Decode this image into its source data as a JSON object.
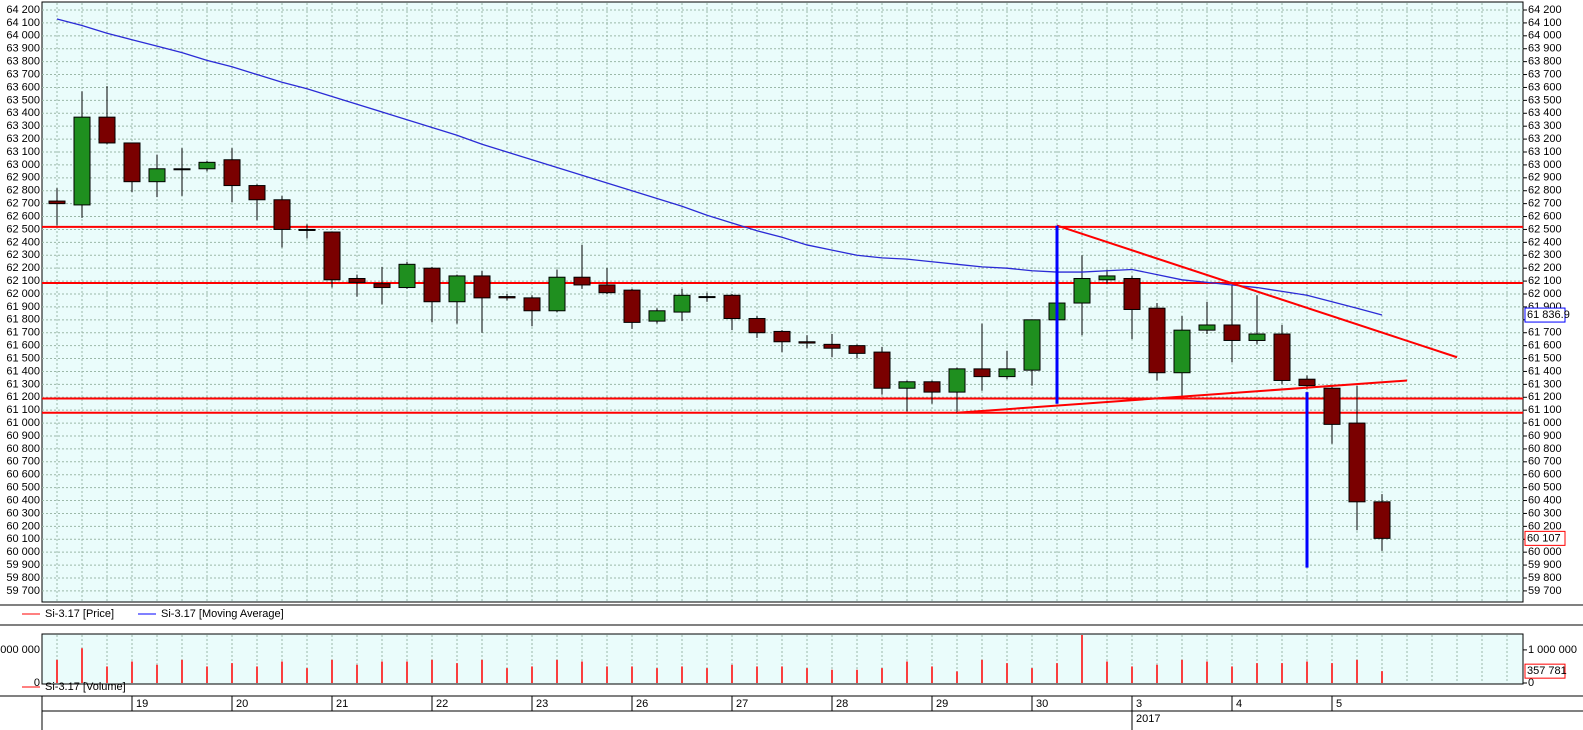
{
  "chart_data": [
    {
      "type": "candlestick",
      "categories": [
        null,
        null,
        null,
        "19",
        null,
        null,
        null,
        "20",
        null,
        null,
        null,
        "21",
        null,
        null,
        null,
        "22",
        null,
        null,
        null,
        "23",
        null,
        null,
        null,
        "26",
        null,
        null,
        null,
        "27",
        null,
        null,
        null,
        "28",
        null,
        null,
        null,
        "29",
        null,
        null,
        null,
        "30",
        null,
        null,
        null,
        "3",
        null,
        null,
        null,
        "4",
        null,
        null,
        null,
        "5",
        null,
        null
      ],
      "year_label": "2017",
      "ylim": [
        59614,
        64262
      ],
      "yticks": [
        {
          "value": 59700,
          "label": "59 700"
        },
        {
          "value": 59800,
          "label": "59 800"
        },
        {
          "value": 59900,
          "label": "59 900"
        },
        {
          "value": 60000,
          "label": "60 000"
        },
        {
          "value": 60100,
          "label": "60 100"
        },
        {
          "value": 60200,
          "label": "60 200"
        },
        {
          "value": 60300,
          "label": "60 300"
        },
        {
          "value": 60400,
          "label": "60 400"
        },
        {
          "value": 60500,
          "label": "60 500"
        },
        {
          "value": 60600,
          "label": "60 600"
        },
        {
          "value": 60700,
          "label": "60 700"
        },
        {
          "value": 60800,
          "label": "60 800"
        },
        {
          "value": 60900,
          "label": "60 900"
        },
        {
          "value": 61000,
          "label": "61 000"
        },
        {
          "value": 61100,
          "label": "61 100"
        },
        {
          "value": 61200,
          "label": "61 200"
        },
        {
          "value": 61300,
          "label": "61 300"
        },
        {
          "value": 61400,
          "label": "61 400"
        },
        {
          "value": 61500,
          "label": "61 500"
        },
        {
          "value": 61600,
          "label": "61 600"
        },
        {
          "value": 61700,
          "label": "61 700"
        },
        {
          "value": 61800,
          "label": "61 800"
        },
        {
          "value": 61900,
          "label": "61 900"
        },
        {
          "value": 62000,
          "label": "62 000"
        },
        {
          "value": 62100,
          "label": "62 100"
        },
        {
          "value": 62200,
          "label": "62 200"
        },
        {
          "value": 62300,
          "label": "62 300"
        },
        {
          "value": 62400,
          "label": "62 400"
        },
        {
          "value": 62500,
          "label": "62 500"
        },
        {
          "value": 62600,
          "label": "62 600"
        },
        {
          "value": 62700,
          "label": "62 700"
        },
        {
          "value": 62800,
          "label": "62 800"
        },
        {
          "value": 62900,
          "label": "62 900"
        },
        {
          "value": 63000,
          "label": "63 000"
        },
        {
          "value": 63100,
          "label": "63 100"
        },
        {
          "value": 63200,
          "label": "63 200"
        },
        {
          "value": 63300,
          "label": "63 300"
        },
        {
          "value": 63400,
          "label": "63 400"
        },
        {
          "value": 63500,
          "label": "63 500"
        },
        {
          "value": 63600,
          "label": "63 600"
        },
        {
          "value": 63700,
          "label": "63 700"
        },
        {
          "value": 63800,
          "label": "63 800"
        },
        {
          "value": 63900,
          "label": "63 900"
        },
        {
          "value": 64000,
          "label": "64 000"
        },
        {
          "value": 64100,
          "label": "64 100"
        },
        {
          "value": 64200,
          "label": "64 200"
        }
      ],
      "grid": true,
      "series": [
        {
          "name": "Si-3.17 [Price]",
          "color": "#ff0000",
          "up_color": "#1f8f1f",
          "down_color": "#7a0000",
          "open": [
            62720,
            62690,
            63370,
            63170,
            62870,
            62970,
            62970,
            63040,
            62840,
            62730,
            62500,
            62480,
            62120,
            62080,
            62050,
            62200,
            61940,
            62140,
            61980,
            61970,
            61870,
            62130,
            62070,
            62030,
            61790,
            61860,
            61980,
            61990,
            61810,
            61710,
            61630,
            61610,
            61600,
            61550,
            61270,
            61320,
            61240,
            61420,
            61360,
            61410,
            61800,
            61930,
            62110,
            62120,
            61890,
            61390,
            61720,
            61760,
            61640,
            61690,
            61340,
            61270,
            61000,
            60390
          ],
          "high": [
            62820,
            63570,
            63610,
            63170,
            63080,
            63130,
            63030,
            63130,
            62850,
            62760,
            62540,
            62480,
            62150,
            62210,
            62250,
            62210,
            62150,
            62180,
            62000,
            61990,
            62190,
            62380,
            62200,
            62040,
            61890,
            62040,
            62010,
            62000,
            61830,
            61720,
            61680,
            61690,
            61610,
            61590,
            61330,
            61330,
            61430,
            61770,
            61560,
            61800,
            61940,
            62300,
            62190,
            62140,
            61930,
            61830,
            61940,
            62070,
            61990,
            61760,
            61370,
            61290,
            61290,
            60450
          ],
          "low": [
            62530,
            62590,
            63160,
            62790,
            62750,
            62760,
            62950,
            62710,
            62570,
            62360,
            62430,
            62050,
            61980,
            61920,
            62040,
            61780,
            61770,
            61700,
            61950,
            61750,
            61860,
            62040,
            62000,
            61730,
            61770,
            61790,
            61940,
            61720,
            61660,
            61550,
            61580,
            61510,
            61500,
            61220,
            61090,
            61150,
            61080,
            61250,
            61340,
            61290,
            61780,
            61680,
            62080,
            61650,
            61330,
            61210,
            61690,
            61470,
            61610,
            61300,
            61260,
            60840,
            60170,
            60010
          ],
          "close": [
            62700,
            63370,
            63170,
            62870,
            62970,
            62970,
            63020,
            62840,
            62730,
            62500,
            62500,
            62110,
            62090,
            62050,
            62230,
            61940,
            62140,
            61970,
            61970,
            61870,
            62130,
            62070,
            62010,
            61780,
            61870,
            61990,
            61980,
            61810,
            61700,
            61630,
            61620,
            61580,
            61540,
            61270,
            61320,
            61240,
            61420,
            61360,
            61420,
            61800,
            61930,
            62120,
            62140,
            61880,
            61390,
            61720,
            61760,
            61640,
            61690,
            61330,
            61290,
            60990,
            60390,
            60107
          ],
          "last_value_label": "60 107"
        },
        {
          "name": "Si-3.17 [Moving Average]",
          "type": "line",
          "color": "#2b2bd6",
          "values": [
            64130,
            64080,
            64020,
            63970,
            63920,
            63870,
            63810,
            63760,
            63700,
            63640,
            63590,
            63530,
            63470,
            63410,
            63350,
            63290,
            63230,
            63160,
            63100,
            63040,
            62980,
            62920,
            62860,
            62800,
            62740,
            62680,
            62610,
            62550,
            62490,
            62440,
            62380,
            62340,
            62300,
            62280,
            62270,
            62250,
            62230,
            62210,
            62200,
            62180,
            62170,
            62170,
            62180,
            62190,
            62150,
            62110,
            62090,
            62070,
            62050,
            62020,
            61990,
            61940,
            61890,
            61836.9
          ],
          "last_value_label": "61 836.9"
        }
      ],
      "hlines": [
        62520,
        62085,
        61190,
        61080
      ],
      "hline_color": "#ff0000",
      "trendlines": [
        {
          "from": [
            40,
            62530
          ],
          "to": [
            56,
            61510
          ],
          "color": "#ff0000",
          "width": 2
        },
        {
          "from": [
            36,
            61080
          ],
          "to": [
            54,
            61330
          ],
          "color": "#ff0000",
          "width": 2
        },
        {
          "from": [
            40,
            62530
          ],
          "to": [
            40,
            61150
          ],
          "color": "#0000ff",
          "width": 3
        },
        {
          "from": [
            50,
            61240
          ],
          "to": [
            50,
            59880
          ],
          "color": "#0000ff",
          "width": 3
        }
      ]
    },
    {
      "type": "bar",
      "ylim": [
        0,
        1480000
      ],
      "yticks": [
        {
          "value": 1000000,
          "label": "1 000 000"
        },
        0
      ],
      "series": [
        {
          "name": "Si-3.17 [Volume]",
          "color": "#ff0000",
          "values": [
            700000,
            1050000,
            500000,
            650000,
            550000,
            700000,
            500000,
            600000,
            500000,
            650000,
            450000,
            700000,
            550000,
            650000,
            650000,
            700000,
            600000,
            700000,
            450000,
            500000,
            700000,
            650000,
            500000,
            500000,
            450000,
            500000,
            450000,
            550000,
            500000,
            500000,
            450000,
            400000,
            400000,
            450000,
            650000,
            500000,
            350000,
            700000,
            600000,
            450000,
            600000,
            1450000,
            650000,
            500000,
            550000,
            700000,
            650000,
            500000,
            600000,
            600000,
            650000,
            600000,
            700000,
            357781
          ],
          "last_value_label": "357 781"
        }
      ]
    }
  ]
}
